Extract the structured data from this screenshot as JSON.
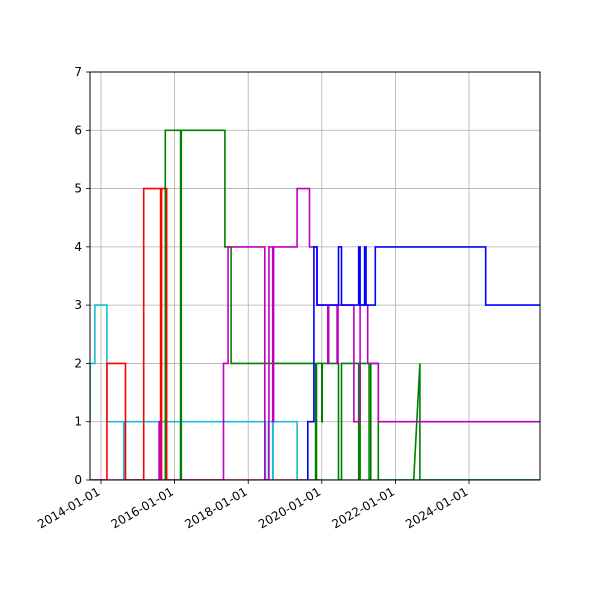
{
  "chart_data": {
    "type": "line",
    "subtype": "step",
    "title": "",
    "xlabel": "",
    "ylabel": "",
    "grid": true,
    "legend": null,
    "ylim": [
      0,
      7
    ],
    "xlim": [
      "2013-09-15",
      "2026-01-01"
    ],
    "y_ticks": [
      "0",
      "1",
      "2",
      "3",
      "4",
      "5",
      "6",
      "7"
    ],
    "x_ticks": [
      "2014-01-01",
      "2016-01-01",
      "2018-01-01",
      "2020-01-01",
      "2022-01-01",
      "2024-01-01"
    ],
    "series": [
      {
        "name": "cyan",
        "color": "#17becf",
        "points": [
          [
            "2013-09-15",
            1
          ],
          [
            "2013-09-15",
            2
          ],
          [
            "2013-11-01",
            2
          ],
          [
            "2013-11-01",
            3
          ],
          [
            "2014-03-01",
            3
          ],
          [
            "2014-03-01",
            1
          ],
          [
            "2014-08-15",
            1
          ],
          [
            "2014-08-15",
            0
          ],
          [
            "2014-08-20",
            0
          ],
          [
            "2014-08-20",
            1
          ],
          [
            "2016-03-01",
            1
          ],
          [
            "2016-03-01",
            0
          ],
          [
            "2016-03-05",
            0
          ],
          [
            "2016-03-05",
            1
          ],
          [
            "2018-06-20",
            1
          ],
          [
            "2018-06-20",
            0
          ],
          [
            "2018-07-20",
            0
          ],
          [
            "2018-07-20",
            1
          ],
          [
            "2018-09-01",
            1
          ],
          [
            "2018-09-01",
            0
          ],
          [
            "2018-09-05",
            0
          ],
          [
            "2018-09-05",
            1
          ],
          [
            "2019-05-01",
            1
          ],
          [
            "2019-05-01",
            0
          ],
          [
            "2026-01-01",
            0
          ]
        ]
      },
      {
        "name": "red",
        "color": "#ff0000",
        "points": [
          [
            "2013-09-15",
            0
          ],
          [
            "2014-03-01",
            0
          ],
          [
            "2014-03-01",
            2
          ],
          [
            "2014-09-01",
            2
          ],
          [
            "2014-09-01",
            0
          ],
          [
            "2015-03-01",
            0
          ],
          [
            "2015-03-01",
            5
          ],
          [
            "2015-08-15",
            5
          ],
          [
            "2015-08-15",
            0
          ],
          [
            "2015-08-25",
            0
          ],
          [
            "2015-08-25",
            5
          ],
          [
            "2015-10-15",
            5
          ],
          [
            "2015-10-15",
            0
          ],
          [
            "2020-01-01",
            0
          ]
        ]
      },
      {
        "name": "green",
        "color": "#008000",
        "points": [
          [
            "2015-10-01",
            0
          ],
          [
            "2015-10-01",
            6
          ],
          [
            "2016-03-01",
            6
          ],
          [
            "2016-03-01",
            0
          ],
          [
            "2016-03-08",
            0
          ],
          [
            "2016-03-08",
            6
          ],
          [
            "2017-05-15",
            6
          ],
          [
            "2017-05-15",
            4
          ],
          [
            "2017-07-15",
            4
          ],
          [
            "2017-07-15",
            2
          ],
          [
            "2019-11-01",
            2
          ],
          [
            "2019-11-01",
            0
          ],
          [
            "2019-11-10",
            0
          ],
          [
            "2019-11-10",
            2
          ],
          [
            "2020-01-01",
            2
          ],
          [
            "2020-01-01",
            1
          ],
          [
            "2020-01-05",
            1
          ],
          [
            "2020-01-05",
            2
          ],
          [
            "2020-06-15",
            2
          ],
          [
            "2020-06-15",
            0
          ],
          [
            "2020-07-15",
            0
          ],
          [
            "2020-07-15",
            2
          ],
          [
            "2021-01-01",
            2
          ],
          [
            "2021-01-01",
            0
          ],
          [
            "2021-01-15",
            0
          ],
          [
            "2021-01-15",
            2
          ],
          [
            "2021-04-15",
            2
          ],
          [
            "2021-04-15",
            0
          ],
          [
            "2021-05-01",
            0
          ],
          [
            "2021-05-01",
            2
          ],
          [
            "2021-07-15",
            2
          ],
          [
            "2021-07-15",
            0
          ],
          [
            "2022-07-01",
            0
          ],
          [
            "2022-09-01",
            2
          ],
          [
            "2022-09-01",
            0
          ],
          [
            "2026-01-01",
            0
          ]
        ]
      },
      {
        "name": "magenta",
        "color": "#bf00bf",
        "points": [
          [
            "2013-09-15",
            0
          ],
          [
            "2015-08-01",
            0
          ],
          [
            "2015-08-01",
            1
          ],
          [
            "2015-08-15",
            1
          ],
          [
            "2015-08-15",
            0
          ],
          [
            "2017-05-01",
            0
          ],
          [
            "2017-05-01",
            2
          ],
          [
            "2017-06-15",
            2
          ],
          [
            "2017-06-15",
            4
          ],
          [
            "2018-06-15",
            4
          ],
          [
            "2018-06-15",
            0
          ],
          [
            "2018-07-25",
            0
          ],
          [
            "2018-07-25",
            4
          ],
          [
            "2018-09-01",
            4
          ],
          [
            "2018-09-01",
            1
          ],
          [
            "2018-09-10",
            1
          ],
          [
            "2018-09-10",
            4
          ],
          [
            "2019-05-01",
            4
          ],
          [
            "2019-05-01",
            5
          ],
          [
            "2019-09-01",
            5
          ],
          [
            "2019-09-01",
            4
          ],
          [
            "2019-11-15",
            4
          ],
          [
            "2019-11-15",
            3
          ],
          [
            "2020-03-01",
            3
          ],
          [
            "2020-03-01",
            2
          ],
          [
            "2020-03-10",
            2
          ],
          [
            "2020-03-10",
            3
          ],
          [
            "2020-06-01",
            3
          ],
          [
            "2020-06-01",
            2
          ],
          [
            "2020-06-10",
            2
          ],
          [
            "2020-06-10",
            3
          ],
          [
            "2020-11-15",
            3
          ],
          [
            "2020-11-15",
            1
          ],
          [
            "2021-01-15",
            1
          ],
          [
            "2021-01-15",
            3
          ],
          [
            "2021-04-01",
            3
          ],
          [
            "2021-04-01",
            2
          ],
          [
            "2021-07-15",
            2
          ],
          [
            "2021-07-15",
            1
          ],
          [
            "2026-01-01",
            1
          ]
        ]
      },
      {
        "name": "blue",
        "color": "#0000ff",
        "points": [
          [
            "2019-08-15",
            0
          ],
          [
            "2019-08-15",
            1
          ],
          [
            "2019-10-15",
            1
          ],
          [
            "2019-10-15",
            4
          ],
          [
            "2019-11-15",
            4
          ],
          [
            "2019-11-15",
            3
          ],
          [
            "2020-06-15",
            3
          ],
          [
            "2020-06-15",
            4
          ],
          [
            "2020-07-15",
            4
          ],
          [
            "2020-07-15",
            3
          ],
          [
            "2021-01-01",
            3
          ],
          [
            "2021-01-01",
            4
          ],
          [
            "2021-01-15",
            4
          ],
          [
            "2021-01-15",
            3
          ],
          [
            "2021-03-01",
            3
          ],
          [
            "2021-03-01",
            4
          ],
          [
            "2021-03-15",
            4
          ],
          [
            "2021-03-15",
            3
          ],
          [
            "2021-06-15",
            3
          ],
          [
            "2021-06-15",
            4
          ],
          [
            "2024-06-15",
            4
          ],
          [
            "2024-06-15",
            3
          ],
          [
            "2026-01-01",
            3
          ]
        ]
      }
    ]
  },
  "axes": {
    "y_tick_labels": [
      "0",
      "1",
      "2",
      "3",
      "4",
      "5",
      "6",
      "7"
    ],
    "x_tick_labels": [
      "2014-01-01",
      "2016-01-01",
      "2018-01-01",
      "2020-01-01",
      "2022-01-01",
      "2024-01-01"
    ]
  }
}
